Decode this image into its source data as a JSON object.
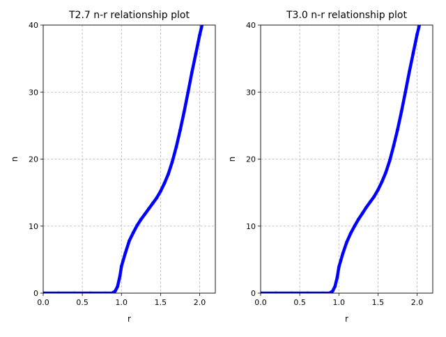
{
  "colors": {
    "series": "#0000ff",
    "grid": "#b0b0b0",
    "axis": "#000000"
  },
  "chart_data": [
    {
      "type": "line",
      "title": "T2.7 n-r relationship plot",
      "xlabel": "r",
      "ylabel": "n",
      "xlim": [
        0,
        2.2
      ],
      "ylim": [
        0,
        40
      ],
      "xticks": [
        0,
        0.5,
        1,
        1.5,
        2
      ],
      "xtick_labels": [
        "0.0",
        "0.5",
        "1.0",
        "1.5",
        "2.0"
      ],
      "yticks": [
        0,
        10,
        20,
        30,
        40
      ],
      "ytick_labels": [
        "0",
        "10",
        "20",
        "30",
        "40"
      ],
      "grid": true,
      "series": [
        {
          "x": [
            0.0,
            0.2,
            0.4,
            0.6,
            0.8,
            0.88,
            0.92,
            0.95,
            0.98,
            1.0,
            1.05,
            1.1,
            1.15,
            1.2,
            1.25,
            1.3,
            1.35,
            1.4,
            1.45,
            1.5,
            1.55,
            1.6,
            1.65,
            1.7,
            1.75,
            1.8,
            1.85,
            1.9,
            1.95,
            2.0,
            2.05,
            2.07
          ],
          "y": [
            0,
            0,
            0,
            0,
            0,
            0,
            0.3,
            1.0,
            2.5,
            4.0,
            6.0,
            7.8,
            9.0,
            10.1,
            11.0,
            11.8,
            12.6,
            13.4,
            14.2,
            15.2,
            16.4,
            17.8,
            19.6,
            21.8,
            24.3,
            27.0,
            29.9,
            32.9,
            35.7,
            38.5,
            41.0,
            42.0
          ]
        }
      ]
    },
    {
      "type": "line",
      "title": "T3.0 n-r relationship plot",
      "xlabel": "r",
      "ylabel": "n",
      "xlim": [
        0,
        2.2
      ],
      "ylim": [
        0,
        40
      ],
      "xticks": [
        0,
        0.5,
        1,
        1.5,
        2
      ],
      "xtick_labels": [
        "0.0",
        "0.5",
        "1.0",
        "1.5",
        "2.0"
      ],
      "yticks": [
        0,
        10,
        20,
        30,
        40
      ],
      "ytick_labels": [
        "0",
        "10",
        "20",
        "30",
        "40"
      ],
      "grid": true,
      "series": [
        {
          "x": [
            0.0,
            0.2,
            0.4,
            0.6,
            0.8,
            0.88,
            0.92,
            0.95,
            0.98,
            1.0,
            1.05,
            1.1,
            1.15,
            1.2,
            1.25,
            1.3,
            1.35,
            1.4,
            1.45,
            1.5,
            1.55,
            1.6,
            1.65,
            1.7,
            1.75,
            1.8,
            1.85,
            1.9,
            1.95,
            2.0,
            2.05,
            2.07
          ],
          "y": [
            0,
            0,
            0,
            0,
            0,
            0,
            0.3,
            1.0,
            2.4,
            3.9,
            5.9,
            7.6,
            8.9,
            10.0,
            11.0,
            11.9,
            12.8,
            13.6,
            14.4,
            15.4,
            16.6,
            18.0,
            19.8,
            22.0,
            24.4,
            27.1,
            30.0,
            33.0,
            35.8,
            38.6,
            41.0,
            42.0
          ]
        }
      ]
    }
  ]
}
